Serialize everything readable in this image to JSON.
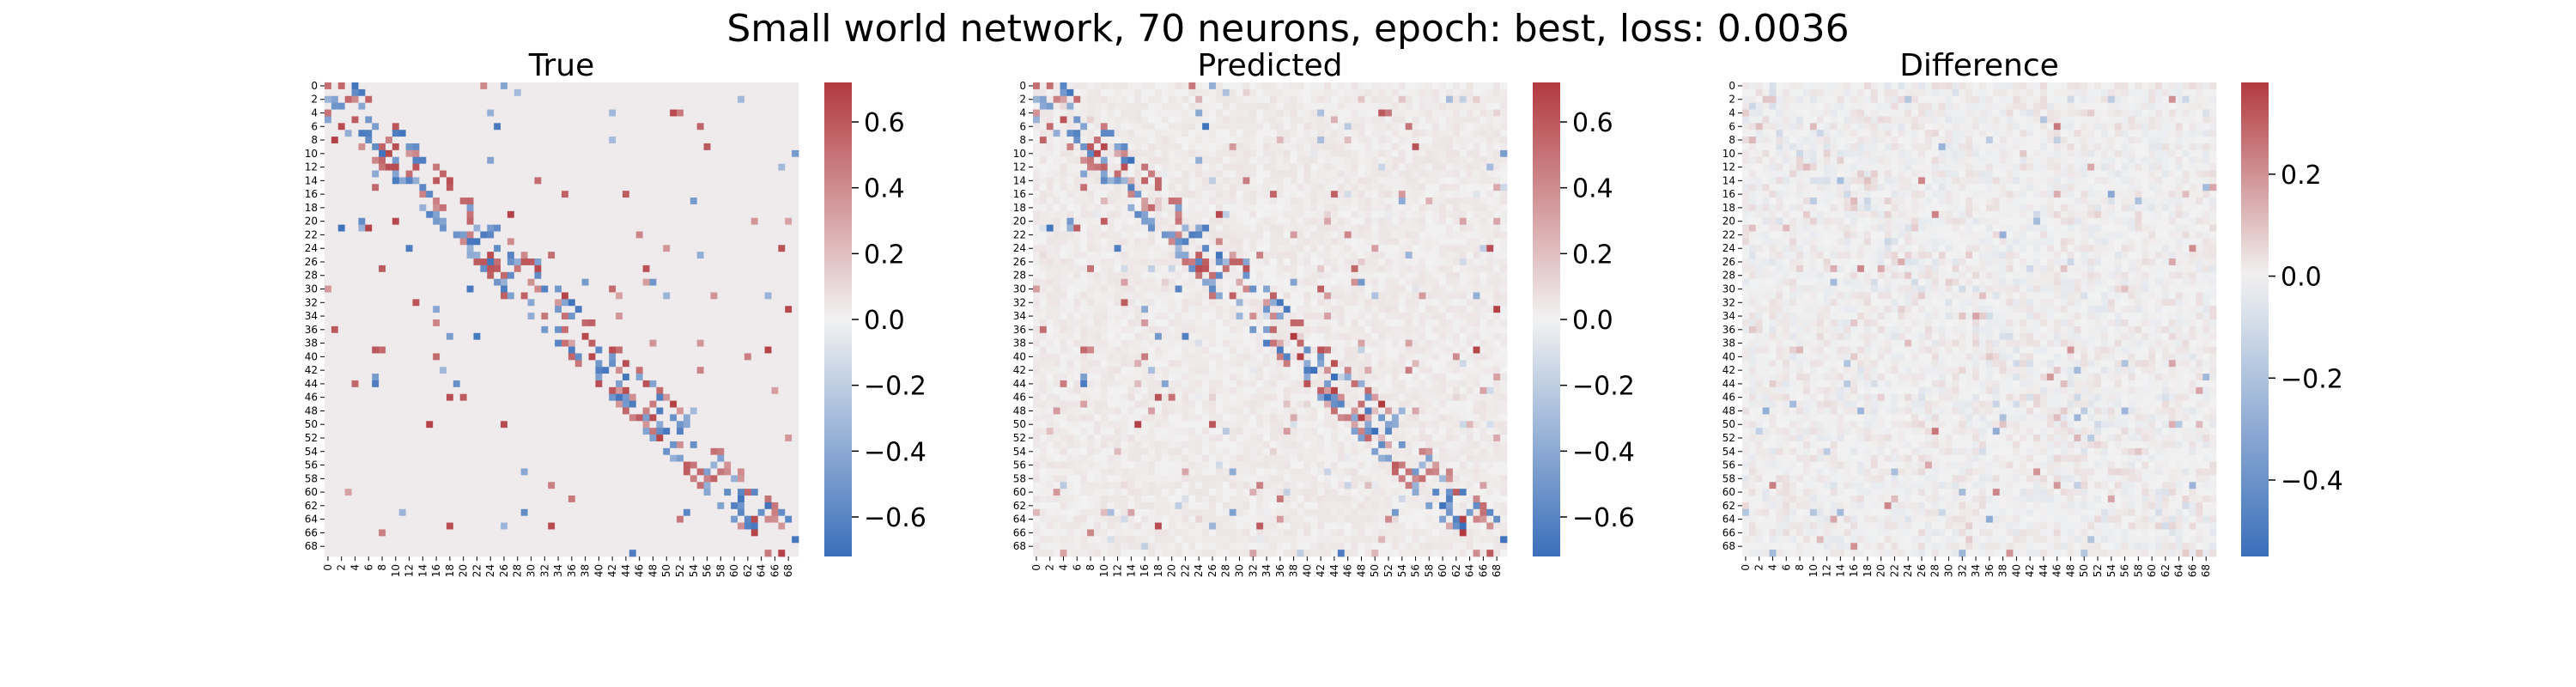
{
  "suptitle": "Small world network, 70 neurons, epoch: best, loss: 0.0036",
  "chart_data": [
    {
      "type": "heatmap",
      "title": "True",
      "n": 70,
      "tick_labels": [
        "0",
        "2",
        "4",
        "6",
        "8",
        "10",
        "12",
        "14",
        "16",
        "18",
        "20",
        "22",
        "24",
        "26",
        "28",
        "30",
        "32",
        "34",
        "36",
        "38",
        "40",
        "42",
        "44",
        "46",
        "48",
        "50",
        "52",
        "54",
        "56",
        "58",
        "60",
        "62",
        "64",
        "66",
        "68"
      ],
      "colormap": {
        "low": "#3a6fba",
        "mid": "#f2f2f2",
        "high": "#b23a3f"
      },
      "vmin": -0.72,
      "vmax": 0.72,
      "colorbar_ticks": [
        -0.6,
        -0.4,
        -0.2,
        0.0,
        0.2,
        0.4,
        0.6
      ],
      "colorbar_tick_labels": [
        "−0.6",
        "−0.4",
        "−0.2",
        "0.0",
        "0.2",
        "0.4",
        "0.6"
      ],
      "background_value": 0.03,
      "structure": "banded small-world connectivity: strong positive/negative weights along the diagonal band plus sparse off-diagonal shortcuts"
    },
    {
      "type": "heatmap",
      "title": "Predicted",
      "n": 70,
      "tick_labels": [
        "0",
        "2",
        "4",
        "6",
        "8",
        "10",
        "12",
        "14",
        "16",
        "18",
        "20",
        "22",
        "24",
        "26",
        "28",
        "30",
        "32",
        "34",
        "36",
        "38",
        "40",
        "42",
        "44",
        "46",
        "48",
        "50",
        "52",
        "54",
        "56",
        "58",
        "60",
        "62",
        "64",
        "66",
        "68"
      ],
      "colormap": {
        "low": "#3a6fba",
        "mid": "#f2f2f2",
        "high": "#b23a3f"
      },
      "vmin": -0.72,
      "vmax": 0.72,
      "colorbar_ticks": [
        -0.6,
        -0.4,
        -0.2,
        0.0,
        0.2,
        0.4,
        0.6
      ],
      "colorbar_tick_labels": [
        "−0.6",
        "−0.4",
        "−0.2",
        "0.0",
        "0.2",
        "0.4",
        "0.6"
      ],
      "background_value": 0.03,
      "structure": "same banded pattern as True with small noise"
    },
    {
      "type": "heatmap",
      "title": "Difference",
      "n": 70,
      "tick_labels": [
        "0",
        "2",
        "4",
        "6",
        "8",
        "10",
        "12",
        "14",
        "16",
        "18",
        "20",
        "22",
        "24",
        "26",
        "28",
        "30",
        "32",
        "34",
        "36",
        "38",
        "40",
        "42",
        "44",
        "46",
        "48",
        "50",
        "52",
        "54",
        "56",
        "58",
        "60",
        "62",
        "64",
        "66",
        "68"
      ],
      "colormap": {
        "low": "#3a6fba",
        "mid": "#f2f2f2",
        "high": "#b23a3f"
      },
      "vmin": -0.55,
      "vmax": 0.38,
      "colorbar_ticks": [
        -0.4,
        -0.2,
        0.0,
        0.2
      ],
      "colorbar_tick_labels": [
        "−0.4",
        "−0.2",
        "0.0",
        "0.2"
      ],
      "background_value": 0.02,
      "structure": "mostly near zero with faint band along the diagonal"
    }
  ]
}
